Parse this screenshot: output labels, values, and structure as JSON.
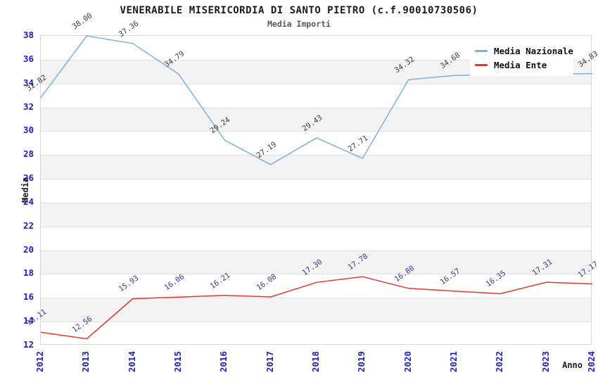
{
  "header": {
    "title": "VENERABILE MISERICORDIA DI SANTO PIETRO (c.f.90010730506)",
    "subtitle": "Media Importi"
  },
  "axes": {
    "x_label": "Anno",
    "y_label": "Media",
    "tick_color": "#1c1ccf"
  },
  "legend": {
    "items": [
      {
        "label": "Media Nazionale",
        "color": "#7cb0e4"
      },
      {
        "label": "Media Ente",
        "color": "#e8352e"
      }
    ]
  },
  "chart_data": {
    "type": "line",
    "title": "VENERABILE MISERICORDIA DI SANTO PIETRO (c.f.90010730506)",
    "subtitle": "Media Importi",
    "xlabel": "Anno",
    "ylabel": "Media",
    "categories": [
      "2012",
      "2013",
      "2014",
      "2015",
      "2016",
      "2017",
      "2018",
      "2019",
      "2020",
      "2021",
      "2022",
      "2023",
      "2024"
    ],
    "series": [
      {
        "name": "Media Nazionale",
        "color": "#7cb0e4",
        "label_color": "#3d3d3d",
        "values": [
          32.82,
          38.0,
          37.36,
          34.79,
          29.24,
          27.19,
          29.43,
          27.71,
          34.32,
          34.68,
          34.75,
          34.8,
          34.83
        ],
        "labels": [
          "32.82",
          "38.00",
          "37.36",
          "34.79",
          "29.24",
          "27.19",
          "29.43",
          "27.71",
          "34.32",
          "34.68",
          "",
          "",
          "34.83"
        ]
      },
      {
        "name": "Media Ente",
        "color": "#e8352e",
        "label_color": "#333aa0",
        "values": [
          13.11,
          12.56,
          15.93,
          16.06,
          16.21,
          16.08,
          17.3,
          17.78,
          16.8,
          16.57,
          16.35,
          17.31,
          17.17
        ],
        "labels": [
          "13.11",
          "12.56",
          "15.93",
          "16.06",
          "16.21",
          "16.08",
          "17.30",
          "17.78",
          "16.80",
          "16.57",
          "16.35",
          "17.31",
          "17.17"
        ]
      }
    ],
    "ylim": [
      12,
      38
    ],
    "ytick_step": 2,
    "grid": "horizontal, alternating shaded bands",
    "band_color": "#f3f3f3",
    "legend_position": "top-right"
  }
}
